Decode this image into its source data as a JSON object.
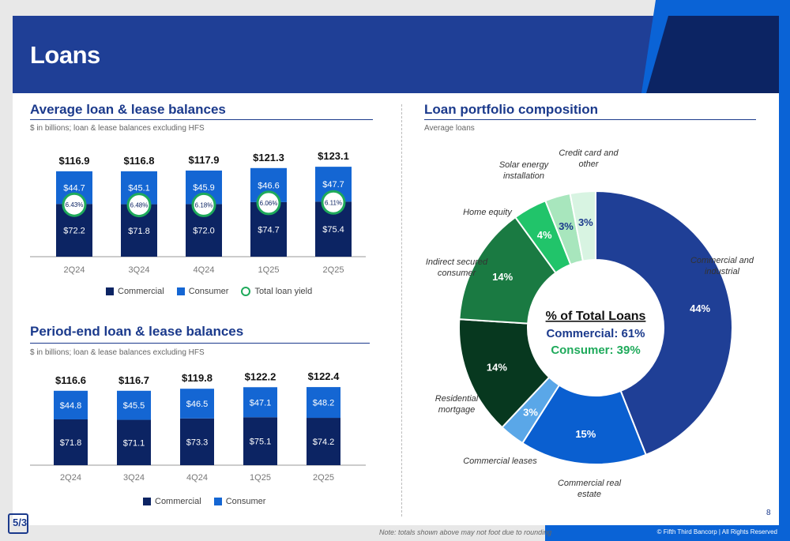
{
  "page": {
    "title": "Loans",
    "page_number": "8",
    "footnote": "Note: totals shown above may not foot due to rounding",
    "copyright": "© Fifth Third Bancorp | All Rights Reserved"
  },
  "colors": {
    "commercial": "#0c2463",
    "consumer": "#1466d3",
    "yield_ring": "#1faa5b",
    "header": "#1f3f96",
    "title": "#1b3a8c"
  },
  "left_top": {
    "title": "Average loan & lease balances",
    "subtitle": "$ in billions; loan & lease balances excluding HFS",
    "legend": {
      "commercial": "Commercial",
      "consumer": "Consumer",
      "yield": "Total loan yield"
    }
  },
  "left_bottom": {
    "title": "Period-end loan & lease balances",
    "subtitle": "$ in billions; loan & lease balances excluding HFS",
    "legend": {
      "commercial": "Commercial",
      "consumer": "Consumer"
    }
  },
  "right": {
    "title": "Loan portfolio composition",
    "subtitle": "Average loans",
    "center_title": "% of Total Loans",
    "center_commercial": "Commercial: 61%",
    "center_consumer": "Consumer: 39%"
  },
  "chart_data": [
    {
      "type": "bar",
      "title": "Average loan & lease balances",
      "categories": [
        "2Q24",
        "3Q24",
        "4Q24",
        "1Q25",
        "2Q25"
      ],
      "totals": [
        "$116.9",
        "$116.8",
        "$117.9",
        "$121.3",
        "$123.1"
      ],
      "series": [
        {
          "name": "Commercial",
          "values": [
            72.2,
            71.8,
            72.0,
            74.7,
            75.4
          ],
          "labels": [
            "$72.2",
            "$71.8",
            "$72.0",
            "$74.7",
            "$75.4"
          ]
        },
        {
          "name": "Consumer",
          "values": [
            44.7,
            45.1,
            45.9,
            46.6,
            47.7
          ],
          "labels": [
            "$44.7",
            "$45.1",
            "$45.9",
            "$46.6",
            "$47.7"
          ]
        }
      ],
      "yield": {
        "name": "Total loan yield",
        "values": [
          6.43,
          6.48,
          6.18,
          6.06,
          6.11
        ],
        "labels": [
          "6.43%",
          "6.48%",
          "6.18%",
          "6.06%",
          "6.11%"
        ]
      }
    },
    {
      "type": "bar",
      "title": "Period-end loan & lease balances",
      "categories": [
        "2Q24",
        "3Q24",
        "4Q24",
        "1Q25",
        "2Q25"
      ],
      "totals": [
        "$116.6",
        "$116.7",
        "$119.8",
        "$122.2",
        "$122.4"
      ],
      "series": [
        {
          "name": "Commercial",
          "values": [
            71.8,
            71.1,
            73.3,
            75.1,
            74.2
          ],
          "labels": [
            "$71.8",
            "$71.1",
            "$73.3",
            "$75.1",
            "$74.2"
          ]
        },
        {
          "name": "Consumer",
          "values": [
            44.8,
            45.5,
            46.5,
            47.1,
            48.2
          ],
          "labels": [
            "$44.8",
            "$45.5",
            "$46.5",
            "$47.1",
            "$48.2"
          ]
        }
      ]
    },
    {
      "type": "pie",
      "title": "Loan portfolio composition",
      "slices": [
        {
          "name": "Commercial and industrial",
          "value": 44,
          "label": "44%",
          "color": "#1f3f96"
        },
        {
          "name": "Commercial real estate",
          "value": 15,
          "label": "15%",
          "color": "#0a5fd0"
        },
        {
          "name": "Commercial leases",
          "value": 3,
          "label": "3%",
          "color": "#5aa7e8"
        },
        {
          "name": "Residential mortgage",
          "value": 14,
          "label": "14%",
          "color": "#07381f"
        },
        {
          "name": "Indirect secured consumer",
          "value": 14,
          "label": "14%",
          "color": "#1a7a42"
        },
        {
          "name": "Home equity",
          "value": 4,
          "label": "4%",
          "color": "#21c46a"
        },
        {
          "name": "Solar energy installation",
          "value": 3,
          "label": "3%",
          "color": "#a8e6bd"
        },
        {
          "name": "Credit card and other",
          "value": 3,
          "label": "3%",
          "color": "#d8f4e2"
        }
      ]
    }
  ]
}
